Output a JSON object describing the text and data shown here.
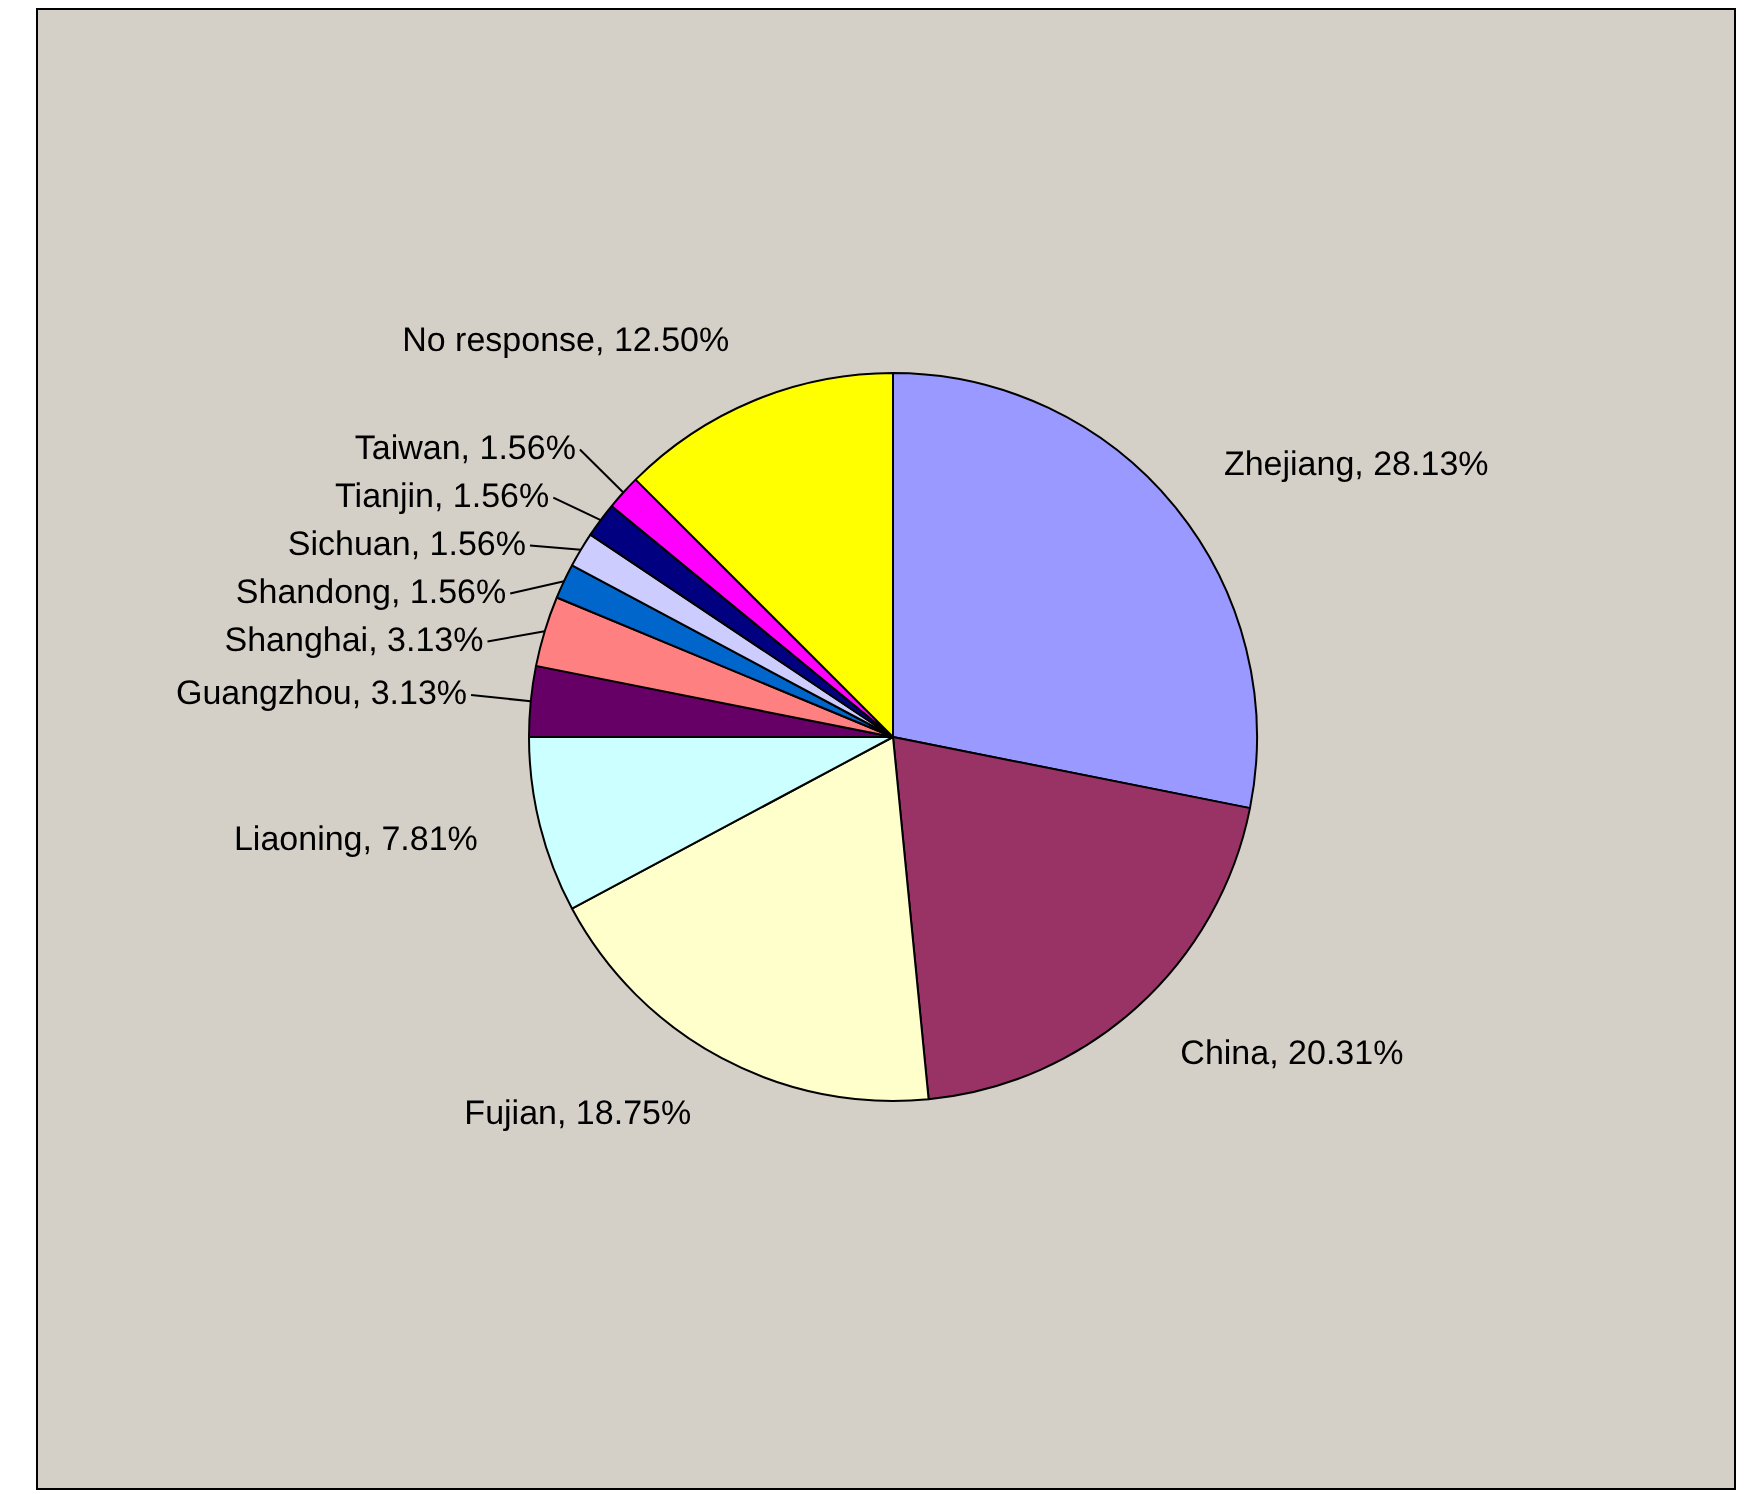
{
  "chart_data": {
    "type": "pie",
    "categories": [
      "Zhejiang",
      "China",
      "Fujian",
      "Liaoning",
      "Guangzhou",
      "Shanghai",
      "Shandong",
      "Sichuan",
      "Tianjin",
      "Taiwan",
      "No response"
    ],
    "values": [
      28.13,
      20.31,
      18.75,
      7.81,
      3.13,
      3.13,
      1.56,
      1.56,
      1.56,
      1.56,
      12.5
    ],
    "colors": [
      "#9999ff",
      "#993366",
      "#ffffcc",
      "#ccffff",
      "#660066",
      "#ff8080",
      "#0066cc",
      "#ccccff",
      "#000080",
      "#ff00ff",
      "#ffff00"
    ],
    "value_labels": [
      "28.13%",
      "20.31%",
      "18.75%",
      "7.81%",
      "3.13%",
      "3.13%",
      "1.56%",
      "1.56%",
      "1.56%",
      "1.56%",
      "12.50%"
    ],
    "legend": false
  }
}
